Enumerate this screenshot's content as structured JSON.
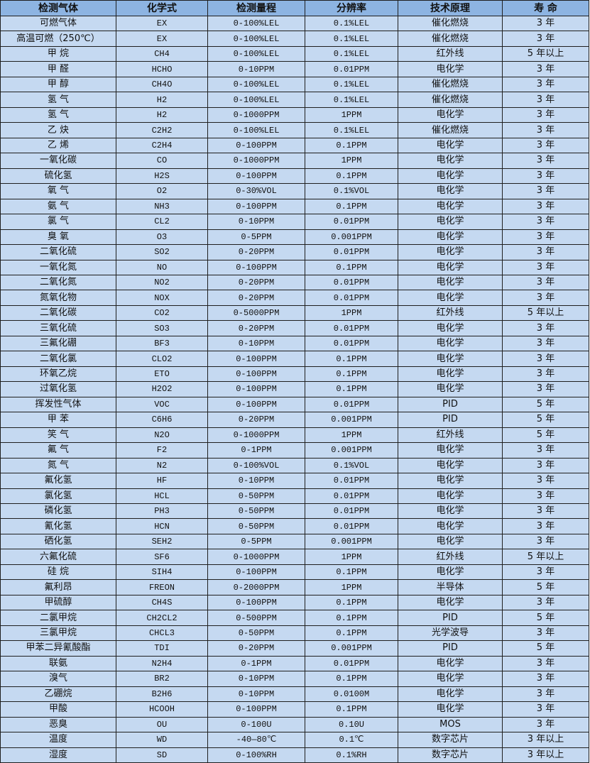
{
  "headers": [
    "检测气体",
    "化学式",
    "检测量程",
    "分辨率",
    "技术原理",
    "寿 命"
  ],
  "rows": [
    [
      "可燃气体",
      "EX",
      "0-100%LEL",
      "0.1%LEL",
      "催化燃烧",
      "3 年"
    ],
    [
      "高温可燃（250℃）",
      "EX",
      "0-100%LEL",
      "0.1%LEL",
      "催化燃烧",
      "3 年"
    ],
    [
      "甲 烷",
      "CH4",
      "0-100%LEL",
      "0.1%LEL",
      "红外线",
      "5 年以上"
    ],
    [
      "甲 醛",
      "HCHO",
      "0-10PPM",
      "0.01PPM",
      "电化学",
      "3 年"
    ],
    [
      "甲 醇",
      "CH4O",
      "0-100%LEL",
      "0.1%LEL",
      "催化燃烧",
      "3 年"
    ],
    [
      "氢 气",
      "H2",
      "0-100%LEL",
      "0.1%LEL",
      "催化燃烧",
      "3 年"
    ],
    [
      "氢 气",
      "H2",
      "0-1000PPM",
      "1PPM",
      "电化学",
      "3 年"
    ],
    [
      "乙 炔",
      "C2H2",
      "0-100%LEL",
      "0.1%LEL",
      "催化燃烧",
      "3 年"
    ],
    [
      "乙 烯",
      "C2H4",
      "0-100PPM",
      "0.1PPM",
      "电化学",
      "3 年"
    ],
    [
      "一氧化碳",
      "CO",
      "0-1000PPM",
      "1PPM",
      "电化学",
      "3 年"
    ],
    [
      "硫化氢",
      "H2S",
      "0-100PPM",
      "0.1PPM",
      "电化学",
      "3 年"
    ],
    [
      "氧 气",
      "O2",
      "0-30%VOL",
      "0.1%VOL",
      "电化学",
      "3 年"
    ],
    [
      "氨 气",
      "NH3",
      "0-100PPM",
      "0.1PPM",
      "电化学",
      "3 年"
    ],
    [
      "氯 气",
      "CL2",
      "0-10PPM",
      "0.01PPM",
      "电化学",
      "3 年"
    ],
    [
      "臭 氧",
      "O3",
      "0-5PPM",
      "0.001PPM",
      "电化学",
      "3 年"
    ],
    [
      "二氧化硫",
      "SO2",
      "0-20PPM",
      "0.01PPM",
      "电化学",
      "3 年"
    ],
    [
      "一氧化氮",
      "NO",
      "0-100PPM",
      "0.1PPM",
      "电化学",
      "3 年"
    ],
    [
      "二氧化氮",
      "NO2",
      "0-20PPM",
      "0.01PPM",
      "电化学",
      "3 年"
    ],
    [
      "氮氧化物",
      "NOX",
      "0-20PPM",
      "0.01PPM",
      "电化学",
      "3 年"
    ],
    [
      "二氧化碳",
      "CO2",
      "0-5000PPM",
      "1PPM",
      "红外线",
      "5 年以上"
    ],
    [
      "三氧化硫",
      "SO3",
      "0-20PPM",
      "0.01PPM",
      "电化学",
      "3 年"
    ],
    [
      "三氟化硼",
      "BF3",
      "0-10PPM",
      "0.01PPM",
      "电化学",
      "3 年"
    ],
    [
      "二氧化氯",
      "CLO2",
      "0-100PPM",
      "0.1PPM",
      "电化学",
      "3 年"
    ],
    [
      "环氧乙烷",
      "ETO",
      "0-100PPM",
      "0.1PPM",
      "电化学",
      "3 年"
    ],
    [
      "过氧化氢",
      "H2O2",
      "0-100PPM",
      "0.1PPM",
      "电化学",
      "3 年"
    ],
    [
      "挥发性气体",
      "VOC",
      "0-100PPM",
      "0.01PPM",
      "PID",
      "5 年"
    ],
    [
      "甲 苯",
      "C6H6",
      "0-20PPM",
      "0.001PPM",
      "PID",
      "5 年"
    ],
    [
      "笑 气",
      "N2O",
      "0-1000PPM",
      "1PPM",
      "红外线",
      "5 年"
    ],
    [
      "氟 气",
      "F2",
      "0-1PPM",
      "0.001PPM",
      "电化学",
      "3 年"
    ],
    [
      "氮 气",
      "N2",
      "0-100%VOL",
      "0.1%VOL",
      "电化学",
      "3 年"
    ],
    [
      "氟化氢",
      "HF",
      "0-10PPM",
      "0.01PPM",
      "电化学",
      "3 年"
    ],
    [
      "氯化氢",
      "HCL",
      "0-50PPM",
      "0.01PPM",
      "电化学",
      "3 年"
    ],
    [
      "磷化氢",
      "PH3",
      "0-50PPM",
      "0.01PPM",
      "电化学",
      "3 年"
    ],
    [
      "氰化氢",
      "HCN",
      "0-50PPM",
      "0.01PPM",
      "电化学",
      "3 年"
    ],
    [
      "硒化氢",
      "SEH2",
      "0-5PPM",
      "0.001PPM",
      "电化学",
      "3 年"
    ],
    [
      "六氟化硫",
      "SF6",
      "0-1000PPM",
      "1PPM",
      "红外线",
      "5 年以上"
    ],
    [
      "硅 烷",
      "SIH4",
      "0-100PPM",
      "0.1PPM",
      "电化学",
      "3 年"
    ],
    [
      "氟利昂",
      "FREON",
      "0-2000PPM",
      "1PPM",
      "半导体",
      "5 年"
    ],
    [
      "甲硫醇",
      "CH4S",
      "0-100PPM",
      "0.1PPM",
      "电化学",
      "3 年"
    ],
    [
      "二氯甲烷",
      "CH2CL2",
      "0-500PPM",
      "0.1PPM",
      "PID",
      "5 年"
    ],
    [
      "三氯甲烷",
      "CHCL3",
      "0-50PPM",
      "0.1PPM",
      "光学波导",
      "3 年"
    ],
    [
      "甲苯二异氰酸酯",
      "TDI",
      "0-20PPM",
      "0.001PPM",
      "PID",
      "5 年"
    ],
    [
      "联氨",
      "N2H4",
      "0-1PPM",
      "0.01PPM",
      "电化学",
      "3 年"
    ],
    [
      "溴气",
      "BR2",
      "0-10PPM",
      "0.1PPM",
      "电化学",
      "3 年"
    ],
    [
      "乙硼烷",
      "B2H6",
      "0-10PPM",
      "0.0100M",
      "电化学",
      "3 年"
    ],
    [
      "甲酸",
      "HCOOH",
      "0-100PPM",
      "0.1PPM",
      "电化学",
      "3 年"
    ],
    [
      "恶臭",
      "OU",
      "0-100U",
      "0.10U",
      "MOS",
      "3 年"
    ],
    [
      "温度",
      "WD",
      "-40—80℃",
      "0.1℃",
      "数字芯片",
      "3 年以上"
    ],
    [
      "湿度",
      "SD",
      "0-100%RH",
      "0.1%RH",
      "数字芯片",
      "3 年以上"
    ]
  ],
  "colors": {
    "header_bg": "#8db4e2",
    "row_bg": "#c5d9f1",
    "border": "#1f1f1f"
  }
}
